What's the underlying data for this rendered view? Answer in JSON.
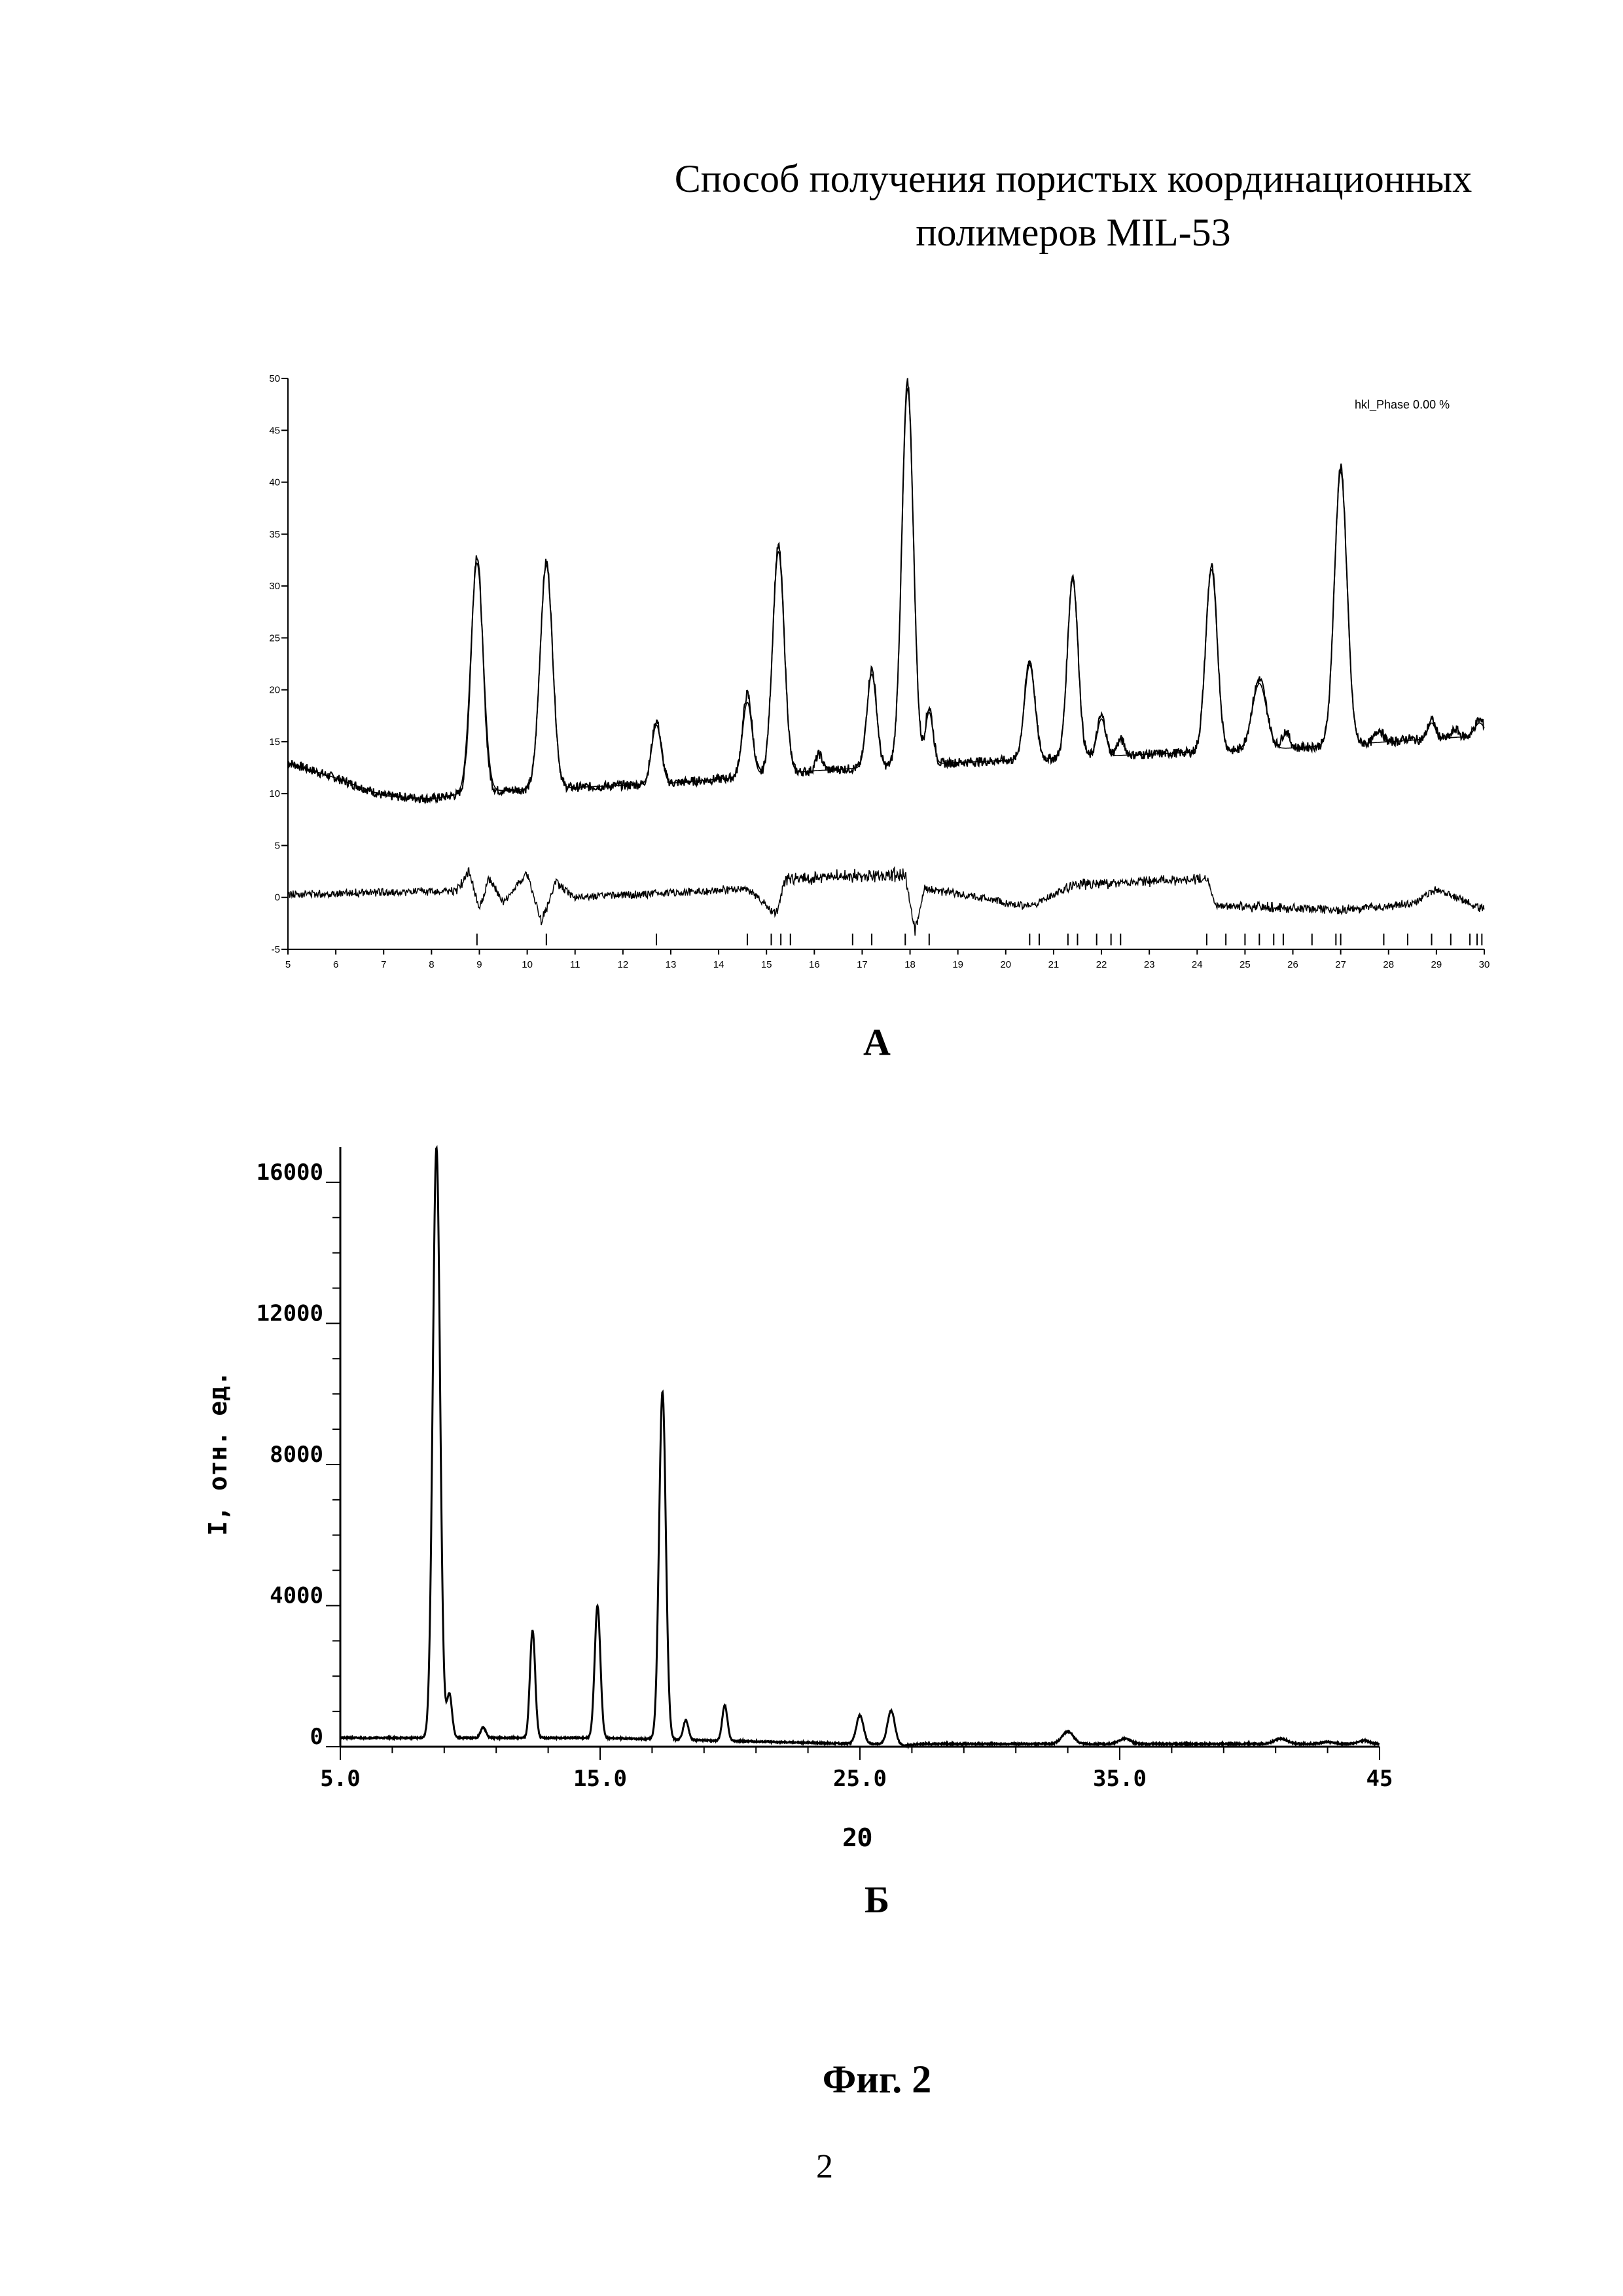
{
  "document": {
    "title_line1": "Способ получения пористых координационных",
    "title_line2": "полимеров  MIL-53",
    "caption_a": "А",
    "caption_b": "Б",
    "figure_label": "Фиг. 2",
    "page_number": "2"
  },
  "chart_data": [
    {
      "type": "line",
      "panel": "А",
      "legend": "hkl_Phase  0.00 %",
      "xlim": [
        5,
        30
      ],
      "ylim": [
        -5,
        50
      ],
      "x_ticks": [
        "5",
        "6",
        "7",
        "8",
        "9",
        "10",
        "11",
        "12",
        "13",
        "14",
        "15",
        "16",
        "17",
        "18",
        "19",
        "20",
        "21",
        "22",
        "23",
        "24",
        "25",
        "26",
        "27",
        "28",
        "29",
        "30"
      ],
      "y_ticks": [
        "-5",
        "0",
        "5",
        "10",
        "15",
        "20",
        "25",
        "30",
        "35",
        "40",
        "45",
        "50"
      ],
      "background": [
        [
          5,
          13
        ],
        [
          6,
          11.5
        ],
        [
          7,
          9.8
        ],
        [
          8,
          9.5
        ],
        [
          9,
          10.2
        ],
        [
          11,
          10.6
        ],
        [
          13,
          11
        ],
        [
          16,
          12.2
        ],
        [
          19,
          13
        ],
        [
          22,
          13.6
        ],
        [
          26,
          14.4
        ],
        [
          30,
          15.6
        ]
      ],
      "series": [
        {
          "role": "observed",
          "peaks": [
            {
              "x": 8.95,
              "y": 33,
              "w": 0.12
            },
            {
              "x": 10.4,
              "y": 32.3,
              "w": 0.13
            },
            {
              "x": 12.7,
              "y": 17,
              "w": 0.1
            },
            {
              "x": 14.6,
              "y": 19.6,
              "w": 0.1
            },
            {
              "x": 15.25,
              "y": 33.8,
              "w": 0.12
            },
            {
              "x": 16.1,
              "y": 13.8,
              "w": 0.07
            },
            {
              "x": 17.2,
              "y": 22,
              "w": 0.1
            },
            {
              "x": 17.95,
              "y": 49.6,
              "w": 0.12
            },
            {
              "x": 18.4,
              "y": 18.3,
              "w": 0.08
            },
            {
              "x": 20.5,
              "y": 22.8,
              "w": 0.11
            },
            {
              "x": 21.4,
              "y": 31,
              "w": 0.11
            },
            {
              "x": 22.0,
              "y": 17.5,
              "w": 0.09
            },
            {
              "x": 22.4,
              "y": 15.2,
              "w": 0.08
            },
            {
              "x": 24.3,
              "y": 31.9,
              "w": 0.12
            },
            {
              "x": 25.3,
              "y": 21,
              "w": 0.15
            },
            {
              "x": 25.85,
              "y": 16,
              "w": 0.08
            },
            {
              "x": 27.0,
              "y": 41.4,
              "w": 0.13
            },
            {
              "x": 27.8,
              "y": 16.2,
              "w": 0.08
            },
            {
              "x": 28.4,
              "y": 15.3,
              "w": 0.08
            },
            {
              "x": 28.9,
              "y": 17.1,
              "w": 0.08
            },
            {
              "x": 29.4,
              "y": 16.2,
              "w": 0.07
            },
            {
              "x": 29.9,
              "y": 17.1,
              "w": 0.1
            }
          ]
        },
        {
          "role": "calculated",
          "peaks": [
            {
              "x": 8.95,
              "y": 32.2,
              "w": 0.13
            },
            {
              "x": 10.4,
              "y": 32,
              "w": 0.13
            },
            {
              "x": 12.7,
              "y": 16.6,
              "w": 0.1
            },
            {
              "x": 14.6,
              "y": 18.8,
              "w": 0.1
            },
            {
              "x": 15.25,
              "y": 33.3,
              "w": 0.12
            },
            {
              "x": 17.2,
              "y": 21.5,
              "w": 0.1
            },
            {
              "x": 17.95,
              "y": 49,
              "w": 0.12
            },
            {
              "x": 18.4,
              "y": 17.8,
              "w": 0.08
            },
            {
              "x": 20.5,
              "y": 22.4,
              "w": 0.11
            },
            {
              "x": 21.4,
              "y": 30.6,
              "w": 0.11
            },
            {
              "x": 22.0,
              "y": 17.2,
              "w": 0.09
            },
            {
              "x": 24.3,
              "y": 31.6,
              "w": 0.12
            },
            {
              "x": 25.3,
              "y": 20.6,
              "w": 0.15
            },
            {
              "x": 27.0,
              "y": 41,
              "w": 0.13
            },
            {
              "x": 28.9,
              "y": 16.8,
              "w": 0.08
            },
            {
              "x": 29.9,
              "y": 16.8,
              "w": 0.1
            }
          ]
        },
        {
          "role": "difference",
          "values": [
            [
              5,
              0.3
            ],
            [
              8.5,
              0.6
            ],
            [
              8.8,
              2.4
            ],
            [
              9.0,
              -1.2
            ],
            [
              9.2,
              1.8
            ],
            [
              9.5,
              -0.5
            ],
            [
              10.0,
              2.3
            ],
            [
              10.3,
              -2.4
            ],
            [
              10.6,
              1.4
            ],
            [
              11,
              0
            ],
            [
              14.6,
              0.8
            ],
            [
              15.2,
              -1.5
            ],
            [
              15.4,
              1.8
            ],
            [
              17.9,
              2.2
            ],
            [
              18.1,
              -3.4
            ],
            [
              18.3,
              0.9
            ],
            [
              20.5,
              -0.9
            ],
            [
              21.4,
              1.2
            ],
            [
              24.2,
              1.8
            ],
            [
              24.4,
              -0.8
            ],
            [
              27.0,
              -1.2
            ],
            [
              28.5,
              -0.6
            ],
            [
              29,
              0.8
            ],
            [
              30,
              -1.2
            ]
          ]
        }
      ],
      "reflections": [
        8.95,
        10.4,
        12.7,
        14.6,
        15.1,
        15.3,
        15.5,
        16.8,
        17.2,
        17.9,
        18.4,
        20.5,
        20.7,
        21.3,
        21.5,
        21.9,
        22.2,
        22.4,
        24.2,
        24.6,
        25.0,
        25.3,
        25.6,
        25.8,
        26.4,
        26.9,
        27.0,
        27.9,
        28.4,
        28.9,
        29.3,
        29.7,
        29.85,
        29.95
      ]
    },
    {
      "type": "line",
      "panel": "Б",
      "xlabel": "2Θ",
      "ylabel": "I, отн. ед.",
      "xlim": [
        5,
        45
      ],
      "ylim": [
        0,
        17000
      ],
      "x_ticks": [
        "5.0",
        "15.0",
        "25.0",
        "35.0",
        "45"
      ],
      "y_ticks": [
        "0",
        "4000",
        "8000",
        "12000",
        "16000"
      ],
      "baseline": 250,
      "peaks": [
        {
          "x": 8.7,
          "y": 17000,
          "w": 0.14
        },
        {
          "x": 9.2,
          "y": 1500,
          "w": 0.1
        },
        {
          "x": 10.5,
          "y": 550,
          "w": 0.1
        },
        {
          "x": 12.4,
          "y": 3300,
          "w": 0.1
        },
        {
          "x": 14.9,
          "y": 4000,
          "w": 0.11
        },
        {
          "x": 17.4,
          "y": 10100,
          "w": 0.13
        },
        {
          "x": 18.3,
          "y": 800,
          "w": 0.1
        },
        {
          "x": 19.8,
          "y": 1250,
          "w": 0.1
        },
        {
          "x": 25.0,
          "y": 1050,
          "w": 0.14
        },
        {
          "x": 26.2,
          "y": 1200,
          "w": 0.14
        },
        {
          "x": 26.8,
          "y": 200,
          "w": 0.2
        },
        {
          "x": 32.4,
          "y": 250,
          "w": 0.2
        },
        {
          "x": 33.0,
          "y": 600,
          "w": 0.22
        },
        {
          "x": 35.2,
          "y": 400,
          "w": 0.22
        },
        {
          "x": 41.2,
          "y": 400,
          "w": 0.25
        },
        {
          "x": 43.0,
          "y": 300,
          "w": 0.25
        },
        {
          "x": 44.4,
          "y": 350,
          "w": 0.2
        }
      ]
    }
  ]
}
